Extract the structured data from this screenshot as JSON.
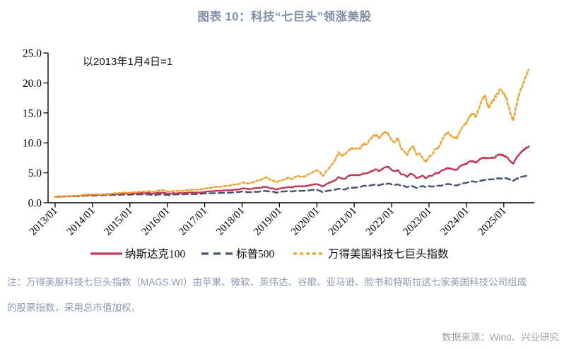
{
  "header": {
    "title": "图表 10：科技“七巨头”领涨美股"
  },
  "note": {
    "line1": "注：万得美股科技七巨头指数（MAGS.WI）由苹果、微软、英伟达、谷歌、亚马逊、脸书和特斯拉这七家美国科技公司组成",
    "line2": "的股票指数，采用总市值加权。"
  },
  "source": {
    "text": "数据来源：Wind、兴业研究"
  },
  "chart_data": {
    "type": "line",
    "title": "图表 10：科技“七巨头”领涨美股",
    "annotation": "以2013年1月4日=1",
    "xlabel": "",
    "ylabel": "",
    "ylim": [
      0,
      25
    ],
    "grid": false,
    "legend_position": "bottom",
    "x_frequency": "monthly",
    "x_start": "2013/01",
    "x_end": "2025/09",
    "x_tick_labels": [
      "2013/01",
      "2014/01",
      "2015/01",
      "2016/01",
      "2017/01",
      "2018/01",
      "2019/01",
      "2020/01",
      "2021/01",
      "2022/01",
      "2023/01",
      "2024/01",
      "2025/01"
    ],
    "y_ticks": [
      0,
      5,
      10,
      15,
      20,
      25
    ],
    "y_tick_labels": [
      "0.0",
      "5.0",
      "10.0",
      "15.0",
      "20.0",
      "25.0"
    ],
    "axis_color": "#000000",
    "series": [
      {
        "id": "nasdaq100",
        "name": "纳斯达克100",
        "style": "solid",
        "color": "#be3a55",
        "values": [
          1.0,
          1.01,
          1.04,
          1.06,
          1.1,
          1.08,
          1.14,
          1.13,
          1.18,
          1.23,
          1.27,
          1.3,
          1.29,
          1.35,
          1.33,
          1.32,
          1.37,
          1.41,
          1.43,
          1.49,
          1.47,
          1.51,
          1.56,
          1.54,
          1.51,
          1.61,
          1.57,
          1.6,
          1.62,
          1.58,
          1.65,
          1.53,
          1.56,
          1.67,
          1.68,
          1.65,
          1.54,
          1.53,
          1.6,
          1.57,
          1.63,
          1.58,
          1.68,
          1.7,
          1.72,
          1.7,
          1.71,
          1.73,
          1.82,
          1.89,
          1.91,
          1.96,
          2.01,
          1.98,
          2.06,
          2.08,
          2.07,
          2.16,
          2.2,
          2.21,
          2.41,
          2.37,
          2.29,
          2.31,
          2.44,
          2.46,
          2.51,
          2.65,
          2.63,
          2.4,
          2.39,
          2.18,
          2.38,
          2.45,
          2.52,
          2.66,
          2.54,
          2.72,
          2.78,
          2.74,
          2.73,
          2.85,
          2.96,
          3.06,
          3.12,
          2.91,
          2.72,
          3.12,
          3.32,
          3.55,
          3.8,
          4.28,
          4.05,
          3.98,
          4.42,
          4.62,
          4.63,
          4.6,
          4.66,
          4.92,
          4.88,
          5.15,
          5.38,
          5.6,
          5.28,
          5.66,
          5.92,
          6.0,
          5.48,
          5.22,
          5.48,
          4.76,
          4.68,
          4.33,
          4.88,
          4.65,
          4.13,
          4.3,
          4.52,
          4.08,
          4.5,
          4.48,
          4.95,
          4.96,
          5.35,
          5.58,
          5.8,
          5.66,
          5.55,
          5.52,
          6.12,
          6.38,
          6.5,
          6.9,
          6.98,
          6.68,
          7.1,
          7.52,
          7.48,
          7.4,
          7.55,
          7.5,
          7.95,
          8.1,
          7.85,
          7.6,
          7.0,
          6.5,
          7.45,
          8.15,
          8.65,
          9.05,
          9.4
        ]
      },
      {
        "id": "sp500",
        "name": "标普500",
        "style": "dashed",
        "color": "#46566e",
        "values": [
          1.0,
          1.01,
          1.04,
          1.06,
          1.08,
          1.06,
          1.11,
          1.08,
          1.11,
          1.16,
          1.19,
          1.22,
          1.18,
          1.23,
          1.24,
          1.25,
          1.27,
          1.3,
          1.28,
          1.33,
          1.31,
          1.34,
          1.38,
          1.37,
          1.33,
          1.4,
          1.38,
          1.39,
          1.41,
          1.38,
          1.4,
          1.31,
          1.28,
          1.39,
          1.39,
          1.36,
          1.3,
          1.29,
          1.38,
          1.39,
          1.41,
          1.41,
          1.46,
          1.46,
          1.45,
          1.43,
          1.48,
          1.51,
          1.54,
          1.59,
          1.59,
          1.6,
          1.62,
          1.63,
          1.66,
          1.66,
          1.69,
          1.73,
          1.78,
          1.79,
          1.89,
          1.82,
          1.77,
          1.78,
          1.82,
          1.83,
          1.89,
          1.95,
          1.96,
          1.82,
          1.85,
          1.68,
          1.82,
          1.87,
          1.9,
          1.98,
          1.86,
          1.98,
          2.0,
          1.97,
          2.0,
          2.04,
          2.11,
          2.17,
          2.16,
          1.98,
          1.73,
          1.95,
          2.04,
          2.08,
          2.19,
          2.34,
          2.25,
          2.2,
          2.44,
          2.53,
          2.5,
          2.57,
          2.68,
          2.82,
          2.83,
          2.89,
          2.96,
          3.04,
          2.9,
          3.1,
          3.08,
          3.24,
          3.06,
          2.97,
          3.08,
          2.81,
          2.81,
          2.6,
          2.83,
          2.72,
          2.46,
          2.66,
          2.8,
          2.6,
          2.77,
          2.7,
          2.8,
          2.84,
          2.85,
          3.03,
          3.12,
          3.07,
          2.93,
          2.87,
          3.13,
          3.27,
          3.32,
          3.48,
          3.59,
          3.45,
          3.62,
          3.74,
          3.79,
          3.87,
          3.94,
          3.9,
          4.12,
          4.02,
          4.14,
          4.08,
          3.86,
          3.62,
          4.0,
          4.2,
          4.36,
          4.48,
          4.65
        ]
      },
      {
        "id": "mag7",
        "name": "万得美国科技七巨头指数",
        "style": "dotted",
        "color": "#f0a32c",
        "values": [
          1.0,
          0.97,
          1.0,
          1.03,
          1.08,
          1.06,
          1.12,
          1.14,
          1.2,
          1.28,
          1.34,
          1.38,
          1.35,
          1.42,
          1.4,
          1.36,
          1.42,
          1.48,
          1.5,
          1.58,
          1.6,
          1.63,
          1.72,
          1.7,
          1.66,
          1.78,
          1.76,
          1.82,
          1.88,
          1.84,
          1.95,
          1.8,
          1.86,
          2.02,
          2.08,
          2.05,
          1.88,
          1.86,
          1.96,
          1.98,
          2.02,
          1.98,
          2.1,
          2.14,
          2.2,
          2.16,
          2.2,
          2.26,
          2.36,
          2.46,
          2.52,
          2.6,
          2.7,
          2.64,
          2.76,
          2.84,
          2.86,
          3.0,
          3.1,
          3.12,
          3.38,
          3.3,
          3.22,
          3.32,
          3.52,
          3.72,
          3.78,
          4.12,
          4.25,
          3.82,
          3.72,
          3.42,
          3.62,
          3.82,
          3.98,
          4.22,
          3.92,
          4.3,
          4.46,
          4.34,
          4.4,
          4.62,
          4.92,
          5.2,
          5.42,
          5.1,
          4.45,
          5.25,
          5.85,
          6.45,
          7.25,
          8.45,
          7.85,
          8.05,
          8.65,
          9.1,
          8.95,
          9.15,
          9.05,
          9.85,
          9.75,
          10.55,
          11.0,
          11.45,
          10.75,
          11.4,
          11.85,
          11.4,
          10.45,
          10.05,
          10.85,
          9.05,
          8.65,
          7.95,
          9.05,
          9.45,
          7.95,
          8.25,
          7.45,
          6.75,
          7.65,
          8.05,
          8.95,
          9.15,
          10.25,
          11.25,
          11.7,
          11.25,
          10.85,
          10.75,
          12.05,
          12.8,
          13.3,
          14.5,
          14.9,
          14.3,
          15.8,
          17.1,
          17.9,
          15.9,
          16.6,
          17.5,
          18.3,
          18.9,
          18.3,
          17.2,
          15.1,
          13.7,
          16.2,
          18.2,
          19.6,
          21.0,
          22.2
        ]
      }
    ]
  }
}
